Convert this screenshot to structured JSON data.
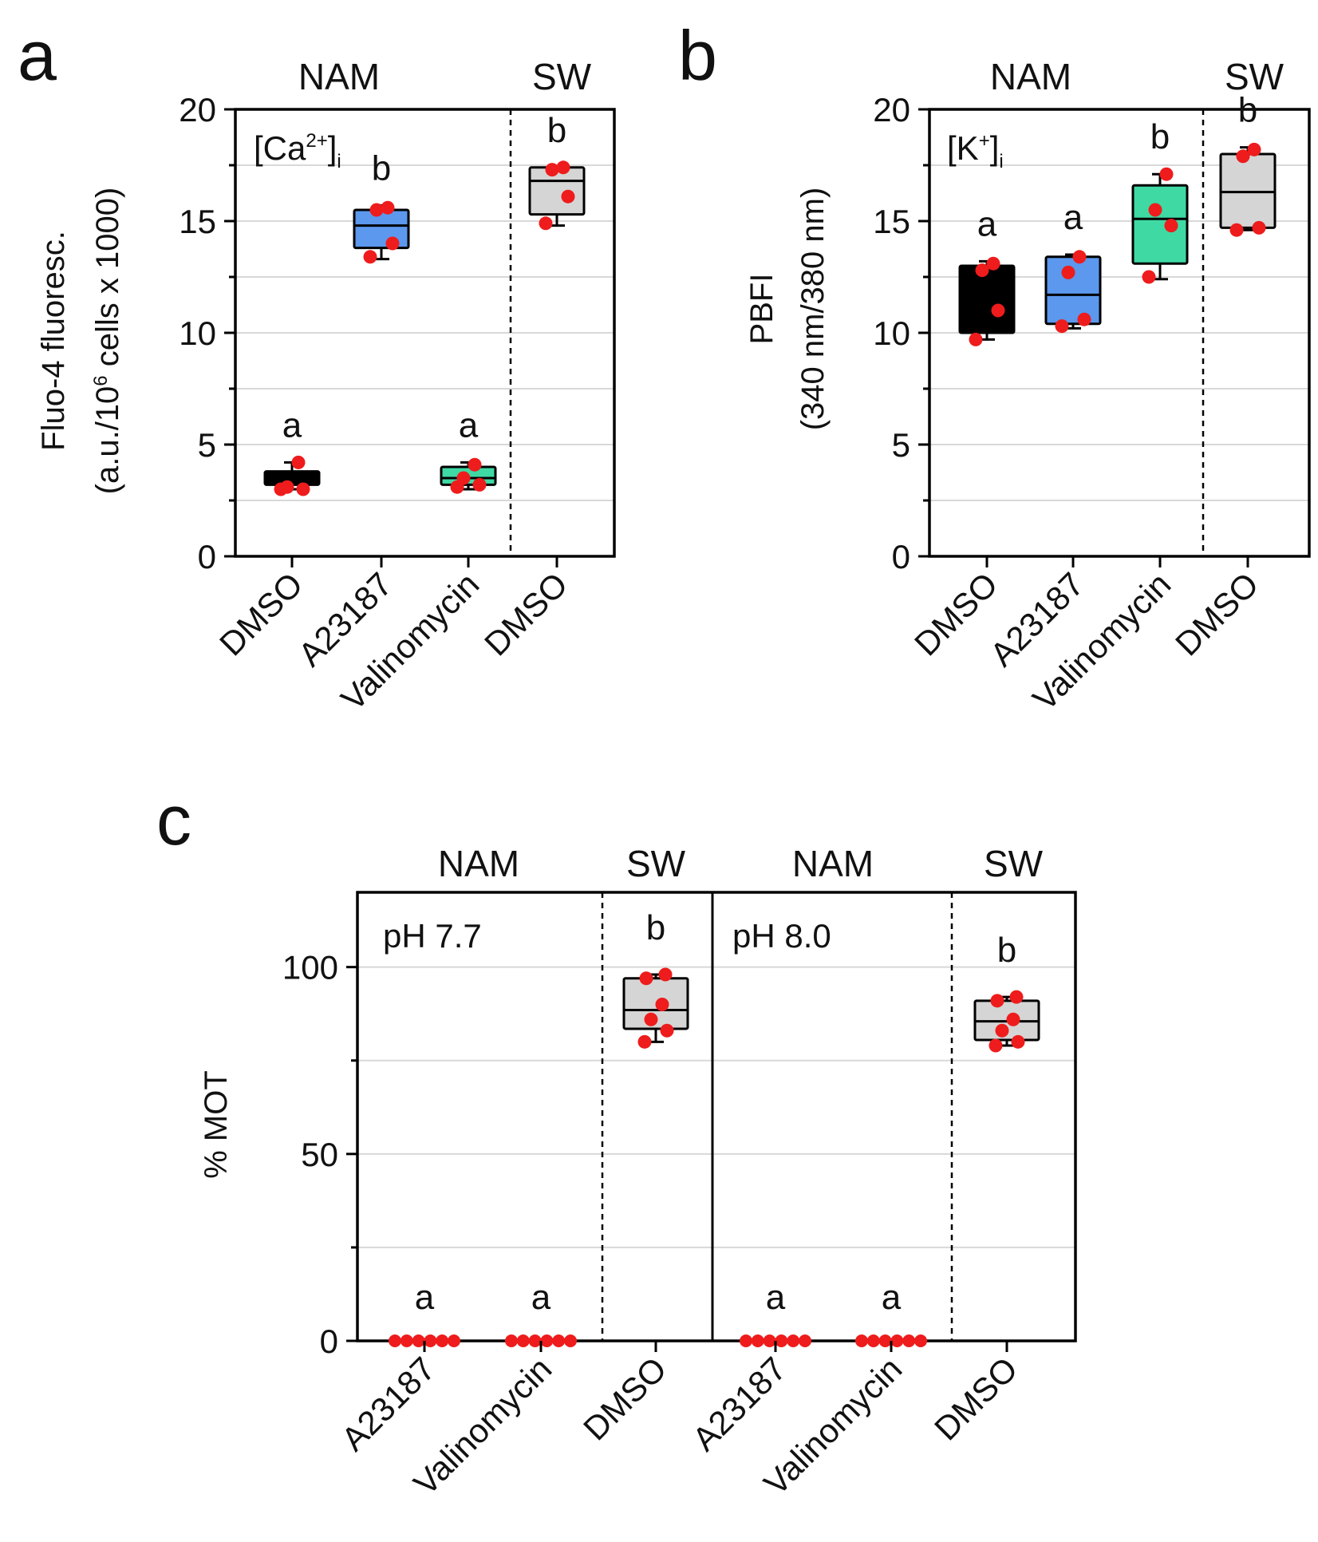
{
  "colors": {
    "point": "#ee1c1c",
    "box_black": "#000000",
    "box_blue": "#5b98ee",
    "box_green": "#3fd9a4",
    "box_gray": "#d5d5d5",
    "gridline": "#d8d8d8",
    "axis": "#000000"
  },
  "chart_data": [
    {
      "panel": "a",
      "type": "box",
      "inset_label": {
        "base": "[Ca",
        "sup": "2+",
        "close": "]",
        "sub": "i"
      },
      "ylabel_line1": "Fluo-4 fluoresc.",
      "ylabel_line2_prefix": "(a.u./10",
      "ylabel_line2_sup": "6",
      "ylabel_line2_suffix": " cells x 1000)",
      "ylim": [
        0,
        20
      ],
      "yticks": [
        0,
        5,
        10,
        15,
        20
      ],
      "ytick_labels": [
        "0",
        "5",
        "10",
        "15",
        "20"
      ],
      "grid": true,
      "groups": [
        {
          "label": "NAM",
          "span": [
            0,
            2
          ]
        },
        {
          "label": "SW",
          "span": [
            3,
            3
          ]
        }
      ],
      "categories": [
        "DMSO",
        "A23187",
        "Valinomycin",
        "DMSO"
      ],
      "boxes": [
        {
          "fill": "box_black",
          "min": 3.0,
          "q1": 3.2,
          "median": 3.5,
          "q3": 3.8,
          "max": 4.2,
          "points": [
            3.0,
            3.0,
            3.1,
            4.2
          ],
          "letter": "a"
        },
        {
          "fill": "box_blue",
          "min": 13.3,
          "q1": 13.8,
          "median": 14.8,
          "q3": 15.5,
          "max": 15.7,
          "points": [
            13.4,
            14.0,
            15.5,
            15.6
          ],
          "letter": "b"
        },
        {
          "fill": "box_green",
          "min": 3.0,
          "q1": 3.2,
          "median": 3.5,
          "q3": 4.0,
          "max": 4.2,
          "points": [
            3.1,
            3.2,
            3.5,
            4.1
          ],
          "letter": "a"
        },
        {
          "fill": "box_gray",
          "min": 14.8,
          "q1": 15.3,
          "median": 16.8,
          "q3": 17.4,
          "max": 17.4,
          "points": [
            14.9,
            16.1,
            17.3,
            17.4
          ],
          "letter": "b"
        }
      ]
    },
    {
      "panel": "b",
      "type": "box",
      "inset_label": {
        "base": "[K",
        "sup": "+",
        "close": "]",
        "sub": "i"
      },
      "ylabel_line1": "PBFI",
      "ylabel_line2": "(340 nm/380 nm)",
      "ylim": [
        0,
        20
      ],
      "yticks": [
        0,
        5,
        10,
        15,
        20
      ],
      "ytick_labels": [
        "0",
        "5",
        "10",
        "15",
        "20"
      ],
      "grid": true,
      "groups": [
        {
          "label": "NAM",
          "span": [
            0,
            2
          ]
        },
        {
          "label": "SW",
          "span": [
            3,
            3
          ]
        }
      ],
      "categories": [
        "DMSO",
        "A23187",
        "Valinomycin",
        "DMSO"
      ],
      "boxes": [
        {
          "fill": "box_black",
          "min": 9.7,
          "q1": 10.0,
          "median": 11.5,
          "q3": 13.0,
          "max": 13.2,
          "points": [
            9.7,
            11.0,
            12.8,
            13.1
          ],
          "letter": "a"
        },
        {
          "fill": "box_blue",
          "min": 10.2,
          "q1": 10.4,
          "median": 11.7,
          "q3": 13.4,
          "max": 13.5,
          "points": [
            10.3,
            10.6,
            12.7,
            13.4
          ],
          "letter": "a"
        },
        {
          "fill": "box_green",
          "min": 12.4,
          "q1": 13.1,
          "median": 15.1,
          "q3": 16.6,
          "max": 17.1,
          "points": [
            12.5,
            14.8,
            15.5,
            17.1
          ],
          "letter": "b"
        },
        {
          "fill": "box_gray",
          "min": 14.6,
          "q1": 14.7,
          "median": 16.3,
          "q3": 18.0,
          "max": 18.3,
          "points": [
            14.6,
            14.7,
            17.9,
            18.2
          ],
          "letter": "b"
        }
      ]
    },
    {
      "panel": "c",
      "type": "box",
      "ylabel": "% MOT",
      "ylim": [
        0,
        120
      ],
      "yticks": [
        0,
        50,
        100
      ],
      "ytick_labels": [
        "0",
        "50",
        "100"
      ],
      "grid": true,
      "sub_panels": [
        {
          "inset_label": "pH 7.7",
          "groups": [
            {
              "label": "NAM",
              "span": [
                0,
                1
              ]
            },
            {
              "label": "SW",
              "span": [
                2,
                2
              ]
            }
          ],
          "categories": [
            "A23187",
            "Valinomycin",
            "DMSO"
          ],
          "boxes": [
            {
              "fill": "box_gray",
              "zero": true,
              "points": [
                0,
                0,
                0,
                0,
                0,
                0
              ],
              "letter": "a"
            },
            {
              "fill": "box_gray",
              "zero": true,
              "points": [
                0,
                0,
                0,
                0,
                0,
                0
              ],
              "letter": "a"
            },
            {
              "fill": "box_gray",
              "min": 80,
              "q1": 83.5,
              "median": 88.5,
              "q3": 97,
              "max": 98,
              "points": [
                80,
                83,
                86,
                90,
                97,
                98
              ],
              "letter": "b"
            }
          ]
        },
        {
          "inset_label": "pH 8.0",
          "groups": [
            {
              "label": "NAM",
              "span": [
                0,
                1
              ]
            },
            {
              "label": "SW",
              "span": [
                2,
                2
              ]
            }
          ],
          "categories": [
            "A23187",
            "Valinomycin",
            "DMSO"
          ],
          "boxes": [
            {
              "fill": "box_gray",
              "zero": true,
              "points": [
                0,
                0,
                0,
                0,
                0,
                0
              ],
              "letter": "a"
            },
            {
              "fill": "box_gray",
              "zero": true,
              "points": [
                0,
                0,
                0,
                0,
                0,
                0
              ],
              "letter": "a"
            },
            {
              "fill": "box_gray",
              "min": 79,
              "q1": 80.5,
              "median": 85.5,
              "q3": 91,
              "max": 92,
              "points": [
                79,
                80,
                83,
                86,
                91,
                92
              ],
              "letter": "b"
            }
          ]
        }
      ]
    }
  ],
  "panel_letters": [
    "a",
    "b",
    "c"
  ]
}
